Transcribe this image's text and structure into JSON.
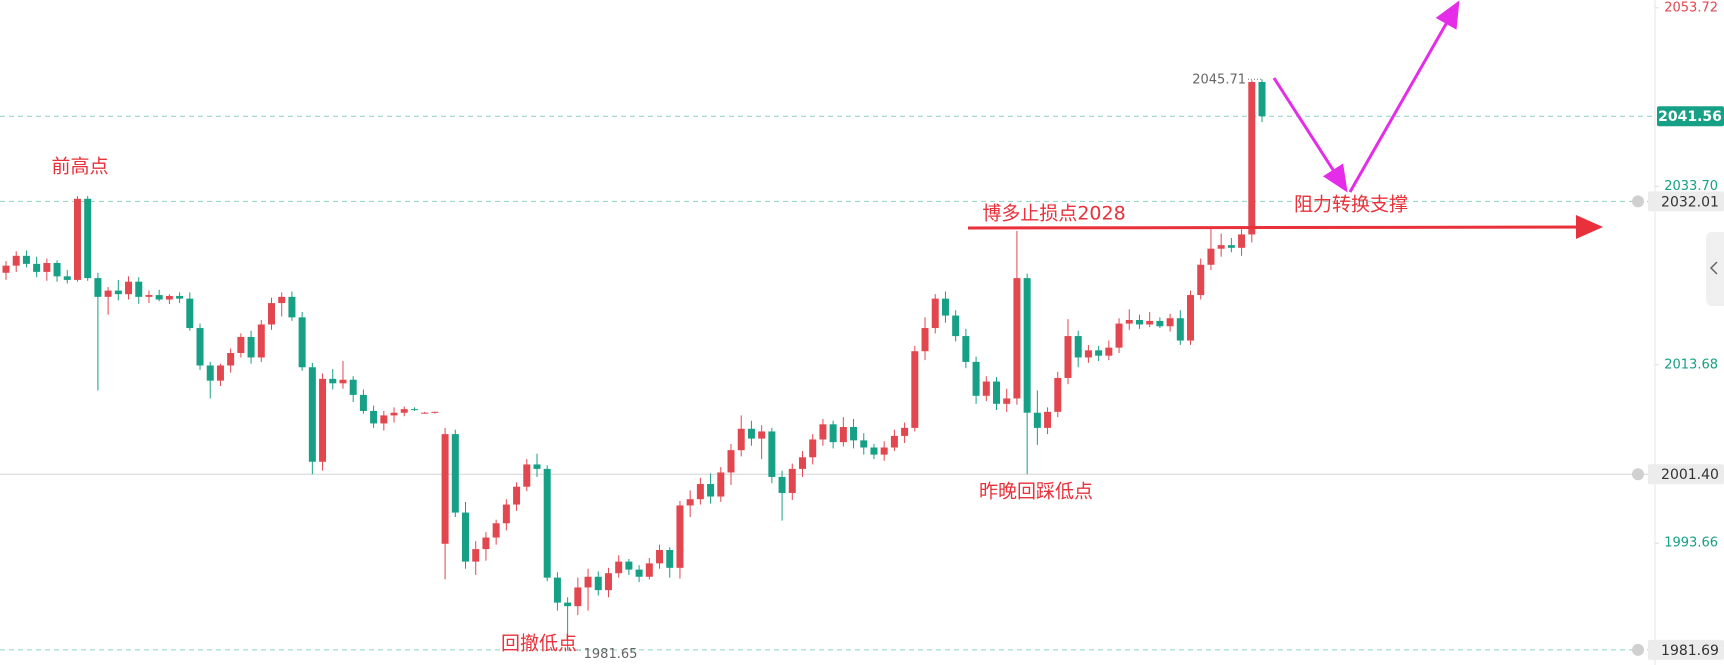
{
  "chart_data": {
    "type": "candlestick",
    "up_color": "#e2474f",
    "down_color": "#16a085",
    "ylim": [
      1980.0,
      2054.6
    ],
    "yticks": [
      {
        "value": 1993.66,
        "label": "1993.66"
      },
      {
        "value": 2013.68,
        "label": "2013.68"
      },
      {
        "value": 2033.7,
        "label": "2033.70"
      },
      {
        "value": 2053.72,
        "label": "2053.72"
      }
    ],
    "price_lines": [
      {
        "value": 2041.56,
        "label": "2041.56",
        "style": "current"
      },
      {
        "value": 2032.01,
        "label": "2032.01",
        "style": "dashed"
      },
      {
        "value": 2001.4,
        "label": "2001.40",
        "style": "solid"
      },
      {
        "value": 1981.69,
        "label": "1981.69",
        "style": "dashed"
      }
    ],
    "high_label": {
      "value": 2045.71,
      "label": "2045.71",
      "index": 123
    },
    "low_label": {
      "value": 1981.65,
      "label": "1981.65",
      "index": 55
    },
    "annotations": [
      "前高点",
      "博多止损点2028",
      "阻力转换支撑",
      "昨晚回踩低点",
      "回撤低点"
    ],
    "candles": [
      [
        2024.0,
        2025.3,
        2023.2,
        2024.8
      ],
      [
        2024.8,
        2026.4,
        2024.1,
        2025.9
      ],
      [
        2025.9,
        2026.5,
        2024.6,
        2025.0
      ],
      [
        2025.0,
        2025.8,
        2023.5,
        2024.1
      ],
      [
        2024.1,
        2025.6,
        2023.1,
        2025.1
      ],
      [
        2025.1,
        2025.4,
        2023.0,
        2023.6
      ],
      [
        2023.6,
        2024.3,
        2022.8,
        2023.2
      ],
      [
        2023.2,
        2032.6,
        2023.0,
        2032.3
      ],
      [
        2032.3,
        2032.6,
        2023.1,
        2023.4
      ],
      [
        2023.4,
        2024.0,
        2010.8,
        2021.3
      ],
      [
        2021.3,
        2022.4,
        2019.3,
        2022.0
      ],
      [
        2022.0,
        2023.2,
        2020.9,
        2021.6
      ],
      [
        2021.6,
        2023.6,
        2021.0,
        2023.0
      ],
      [
        2023.0,
        2023.5,
        2020.5,
        2021.3
      ],
      [
        2021.3,
        2022.0,
        2020.6,
        2021.5
      ],
      [
        2021.5,
        2022.1,
        2020.8,
        2021.0
      ],
      [
        2021.0,
        2021.6,
        2020.5,
        2021.4
      ],
      [
        2021.4,
        2021.8,
        2020.6,
        2021.1
      ],
      [
        2021.1,
        2021.8,
        2017.5,
        2017.8
      ],
      [
        2017.8,
        2018.3,
        2013.1,
        2013.6
      ],
      [
        2013.6,
        2014.0,
        2009.9,
        2011.9
      ],
      [
        2011.9,
        2013.8,
        2011.3,
        2013.6
      ],
      [
        2013.6,
        2015.5,
        2012.8,
        2015.0
      ],
      [
        2015.0,
        2017.2,
        2014.5,
        2016.8
      ],
      [
        2016.8,
        2017.5,
        2013.8,
        2014.5
      ],
      [
        2014.5,
        2018.7,
        2014.0,
        2018.2
      ],
      [
        2018.2,
        2021.2,
        2017.6,
        2020.6
      ],
      [
        2020.6,
        2021.8,
        2019.1,
        2021.3
      ],
      [
        2021.3,
        2021.9,
        2018.6,
        2019.0
      ],
      [
        2019.0,
        2019.6,
        2013.0,
        2013.4
      ],
      [
        2013.4,
        2013.9,
        2001.4,
        2002.8
      ],
      [
        2002.8,
        2012.7,
        2001.8,
        2012.1
      ],
      [
        2012.1,
        2013.2,
        2010.9,
        2011.6
      ],
      [
        2011.6,
        2014.1,
        2011.0,
        2012.0
      ],
      [
        2012.0,
        2012.4,
        2009.5,
        2010.3
      ],
      [
        2010.3,
        2010.9,
        2008.2,
        2008.5
      ],
      [
        2008.5,
        2009.1,
        2006.6,
        2007.1
      ],
      [
        2007.1,
        2008.5,
        2006.3,
        2008.0
      ],
      [
        2008.0,
        2008.9,
        2007.2,
        2008.3
      ],
      [
        2008.3,
        2009.0,
        2007.9,
        2008.7
      ],
      [
        2008.7,
        2008.9,
        2008.5,
        2008.6
      ],
      [
        2008.3,
        2008.4,
        2008.2,
        2008.3
      ],
      [
        2008.3,
        2008.4,
        2008.2,
        2008.4
      ],
      [
        1993.6,
        2006.6,
        1989.6,
        2005.9
      ],
      [
        2005.9,
        2006.4,
        1996.6,
        1997.1
      ],
      [
        1997.1,
        1998.3,
        1990.8,
        1991.6
      ],
      [
        1991.6,
        1993.9,
        1990.1,
        1993.0
      ],
      [
        1993.0,
        1994.9,
        1991.7,
        1994.3
      ],
      [
        1994.3,
        1996.3,
        1993.5,
        1995.9
      ],
      [
        1995.9,
        1998.6,
        1995.1,
        1998.0
      ],
      [
        1998.0,
        2000.5,
        1997.3,
        2000.0
      ],
      [
        2000.0,
        2003.1,
        1999.5,
        2002.5
      ],
      [
        2002.5,
        2003.7,
        2001.1,
        2002.0
      ],
      [
        2002.0,
        2002.4,
        1989.4,
        1989.8
      ],
      [
        1989.8,
        1990.4,
        1986.1,
        1987.0
      ],
      [
        1987.0,
        1987.6,
        1981.65,
        1986.6
      ],
      [
        1986.6,
        1989.8,
        1985.6,
        1988.7
      ],
      [
        1988.7,
        1990.8,
        1986.1,
        1989.9
      ],
      [
        1989.9,
        1990.5,
        1987.8,
        1988.4
      ],
      [
        1988.4,
        1990.9,
        1987.6,
        1990.3
      ],
      [
        1990.3,
        1992.3,
        1989.8,
        1991.6
      ],
      [
        1991.6,
        1991.9,
        1990.1,
        1990.7
      ],
      [
        1990.7,
        1991.2,
        1989.3,
        1989.9
      ],
      [
        1989.9,
        1992.0,
        1989.6,
        1991.4
      ],
      [
        1991.4,
        1993.5,
        1990.8,
        1992.9
      ],
      [
        1992.9,
        1993.2,
        1989.8,
        1990.9
      ],
      [
        1990.9,
        1998.4,
        1989.7,
        1997.9
      ],
      [
        1997.9,
        1999.6,
        1996.6,
        1998.6
      ],
      [
        1998.6,
        2001.0,
        1998.0,
        2000.3
      ],
      [
        2000.3,
        2001.5,
        1998.1,
        1998.9
      ],
      [
        1998.9,
        2002.2,
        1998.3,
        2001.6
      ],
      [
        2001.6,
        2004.8,
        2000.2,
        2004.1
      ],
      [
        2004.1,
        2008.0,
        2003.4,
        2006.5
      ],
      [
        2006.5,
        2007.4,
        2004.6,
        2005.4
      ],
      [
        2005.4,
        2006.9,
        2003.1,
        2006.2
      ],
      [
        2006.2,
        2006.6,
        2000.4,
        2001.1
      ],
      [
        2001.1,
        2001.8,
        1996.2,
        1999.3
      ],
      [
        1999.3,
        2002.6,
        1998.5,
        2002.0
      ],
      [
        2002.0,
        2004.0,
        2001.1,
        2003.3
      ],
      [
        2003.3,
        2005.9,
        2002.5,
        2005.3
      ],
      [
        2005.3,
        2007.6,
        2004.6,
        2007.0
      ],
      [
        2007.0,
        2007.4,
        2004.3,
        2005.0
      ],
      [
        2005.0,
        2007.8,
        2004.5,
        2006.7
      ],
      [
        2006.7,
        2007.6,
        2004.3,
        2005.2
      ],
      [
        2005.2,
        2006.0,
        2003.6,
        2004.4
      ],
      [
        2004.4,
        2004.8,
        2003.1,
        2003.6
      ],
      [
        2003.6,
        2005.1,
        2002.9,
        2004.4
      ],
      [
        2004.4,
        2006.4,
        2004.0,
        2005.7
      ],
      [
        2005.7,
        2007.2,
        2004.9,
        2006.6
      ],
      [
        2006.6,
        2015.8,
        2006.2,
        2015.2
      ],
      [
        2015.2,
        2019.0,
        2014.2,
        2017.8
      ],
      [
        2017.8,
        2021.6,
        2017.2,
        2021.1
      ],
      [
        2021.1,
        2021.9,
        2018.4,
        2019.2
      ],
      [
        2019.2,
        2019.8,
        2016.3,
        2016.9
      ],
      [
        2016.9,
        2017.7,
        2013.3,
        2014.0
      ],
      [
        2014.0,
        2014.6,
        2009.3,
        2010.2
      ],
      [
        2010.2,
        2012.4,
        2009.6,
        2011.8
      ],
      [
        2011.8,
        2012.3,
        2008.6,
        2009.3
      ],
      [
        2009.3,
        2011.0,
        2008.4,
        2009.9
      ],
      [
        2009.9,
        2028.7,
        2009.2,
        2023.4
      ],
      [
        2023.4,
        2023.9,
        2001.4,
        2008.3
      ],
      [
        2008.3,
        2010.8,
        2004.7,
        2006.6
      ],
      [
        2006.6,
        2008.9,
        2005.9,
        2008.4
      ],
      [
        2008.4,
        2012.9,
        2007.8,
        2012.2
      ],
      [
        2012.2,
        2018.8,
        2011.5,
        2016.9
      ],
      [
        2016.9,
        2017.5,
        2013.4,
        2014.5
      ],
      [
        2014.5,
        2015.9,
        2013.9,
        2015.3
      ],
      [
        2015.3,
        2015.8,
        2014.1,
        2014.7
      ],
      [
        2014.7,
        2016.4,
        2014.2,
        2015.6
      ],
      [
        2015.6,
        2018.9,
        2015.0,
        2018.3
      ],
      [
        2018.3,
        2019.9,
        2017.6,
        2018.7
      ],
      [
        2018.7,
        2019.3,
        2017.7,
        2018.2
      ],
      [
        2018.2,
        2019.6,
        2017.9,
        2018.6
      ],
      [
        2018.6,
        2019.0,
        2017.8,
        2018.0
      ],
      [
        2018.0,
        2019.4,
        2017.4,
        2018.9
      ],
      [
        2018.9,
        2019.8,
        2015.9,
        2016.4
      ],
      [
        2016.4,
        2022.0,
        2015.9,
        2021.5
      ],
      [
        2021.5,
        2025.6,
        2021.0,
        2024.9
      ],
      [
        2024.9,
        2028.9,
        2024.3,
        2026.7
      ],
      [
        2026.7,
        2028.4,
        2025.8,
        2027.1
      ],
      [
        2027.1,
        2027.9,
        2026.3,
        2026.8
      ],
      [
        2026.8,
        2028.9,
        2025.9,
        2028.3
      ],
      [
        2028.3,
        2045.6,
        2027.4,
        2045.4
      ],
      [
        2045.4,
        2045.71,
        2040.9,
        2041.56
      ]
    ]
  }
}
